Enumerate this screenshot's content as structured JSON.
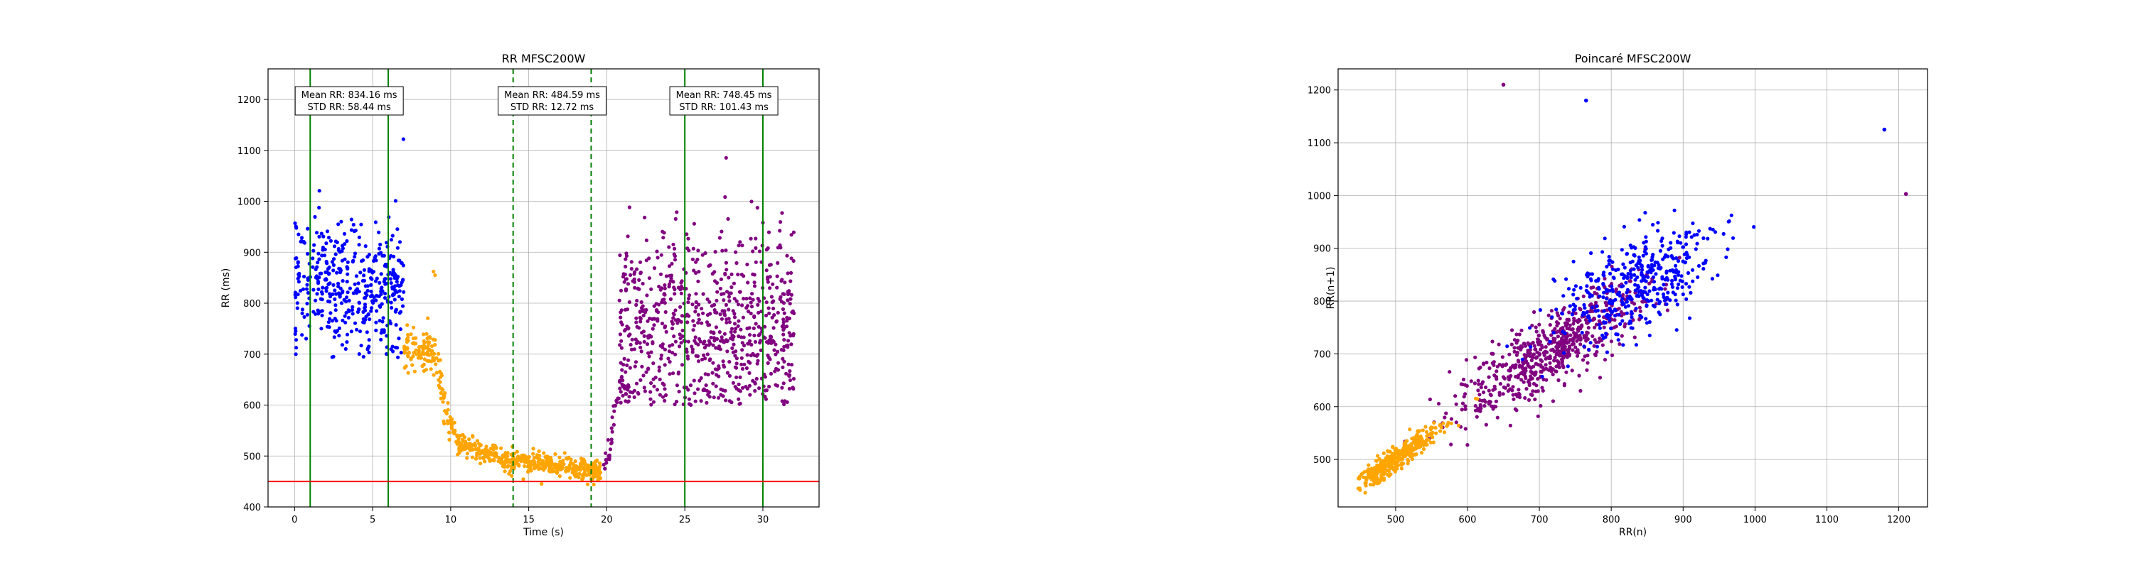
{
  "chart_data": [
    {
      "type": "scatter",
      "title": "RR MFSC200W",
      "xlabel": "Time (s)",
      "ylabel": "RR (ms)",
      "xlim": [
        -1.7,
        33.6
      ],
      "ylim": [
        400,
        1260
      ],
      "xticks": [
        0,
        5,
        10,
        15,
        20,
        25,
        30
      ],
      "yticks": [
        400,
        500,
        600,
        700,
        800,
        900,
        1000,
        1100,
        1200
      ],
      "grid": true,
      "colors": {
        "phase_rest": "#0000ff",
        "phase_exercise": "#ffa500",
        "phase_recovery": "#800080",
        "threshold": "#ff0000",
        "marker": "#008000"
      },
      "threshold_line": {
        "y": 450
      },
      "vlines_solid": [
        1,
        6,
        25,
        30
      ],
      "vlines_dashed": [
        14,
        19
      ],
      "annotations": [
        {
          "x": 3.5,
          "line1": "Mean RR: 834.16 ms",
          "line2": "STD RR: 58.44 ms"
        },
        {
          "x": 16.5,
          "line1": "Mean RR: 484.59 ms",
          "line2": "STD RR: 12.72 ms"
        },
        {
          "x": 27.5,
          "line1": "Mean RR: 748.45 ms",
          "line2": "STD RR: 101.43 ms"
        }
      ],
      "series_summary": [
        {
          "color": "phase_rest",
          "x_range": [
            0,
            7
          ],
          "approx_mean": 834,
          "approx_std": 58
        },
        {
          "color": "phase_exercise",
          "x_range": [
            7,
            20
          ],
          "trend": [
            [
              7,
              710
            ],
            [
              8,
              710
            ],
            [
              9,
              700
            ],
            [
              9.8,
              580
            ],
            [
              10.6,
              520
            ],
            [
              12,
              510
            ],
            [
              13,
              500
            ],
            [
              14,
              490
            ],
            [
              16,
              485
            ],
            [
              18,
              478
            ],
            [
              19.5,
              470
            ]
          ],
          "outlier_points": [
            [
              8.9,
              862
            ],
            [
              9.0,
              855
            ]
          ]
        },
        {
          "color": "phase_recovery",
          "x_range": [
            20,
            32
          ],
          "approx_mean": 748,
          "approx_std": 101,
          "early_trend": [
            [
              19.8,
              470
            ],
            [
              20.2,
              520
            ],
            [
              20.5,
              590
            ],
            [
              21,
              640
            ]
          ]
        }
      ]
    },
    {
      "type": "scatter",
      "title": "Poincaré MFSC200W",
      "xlabel": "RR(n)",
      "ylabel": "RR(n+1)",
      "xlim": [
        420,
        1240
      ],
      "ylim": [
        410,
        1240
      ],
      "xticks": [
        500,
        600,
        700,
        800,
        900,
        1000,
        1100,
        1200
      ],
      "yticks": [
        500,
        600,
        700,
        800,
        900,
        1000,
        1100,
        1200
      ],
      "grid": true,
      "clusters": [
        {
          "color": "phase_exercise",
          "center": [
            500,
            500
          ],
          "spread_along": 45,
          "spread_across": 8,
          "n": 380
        },
        {
          "color": "phase_recovery",
          "center": [
            720,
            710
          ],
          "spread_along": 90,
          "spread_across": 25,
          "n": 650
        },
        {
          "color": "phase_rest",
          "center": [
            835,
            835
          ],
          "spread_along": 70,
          "spread_across": 35,
          "n": 420
        }
      ],
      "notable_points": [
        {
          "x": 650,
          "y": 1210,
          "color": "phase_recovery"
        },
        {
          "x": 765,
          "y": 1180,
          "color": "phase_rest"
        },
        {
          "x": 1180,
          "y": 1125,
          "color": "phase_rest"
        },
        {
          "x": 1210,
          "y": 1003,
          "color": "phase_recovery"
        }
      ]
    }
  ]
}
